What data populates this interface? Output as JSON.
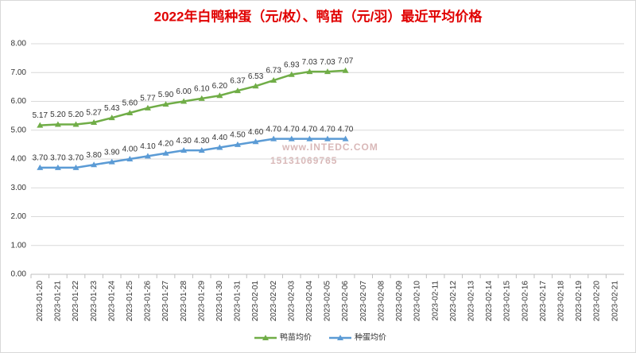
{
  "chart_data": {
    "type": "line",
    "title": "2022年白鸭种蛋（元/枚）、鸭苗（元/羽）最近平均价格",
    "categories": [
      "2023-01-20",
      "2023-01-21",
      "2023-01-22",
      "2023-01-23",
      "2023-01-24",
      "2023-01-25",
      "2023-01-26",
      "2023-01-27",
      "2023-01-28",
      "2023-01-29",
      "2023-01-30",
      "2023-01-31",
      "2023-02-01",
      "2023-02-02",
      "2023-02-03",
      "2023-02-04",
      "2023-02-05",
      "2023-02-06",
      "2023-02-07",
      "2023-02-08",
      "2023-02-09",
      "2023-02-10",
      "2023-02-11",
      "2023-02-12",
      "2023-02-13",
      "2023-02-14",
      "2023-02-15",
      "2023-02-16",
      "2023-02-17",
      "2023-02-18",
      "2023-02-19",
      "2023-02-20",
      "2023-02-21"
    ],
    "series": [
      {
        "name": "鸭苗均价",
        "color": "#70ad47",
        "values": [
          5.17,
          5.2,
          5.2,
          5.27,
          5.43,
          5.6,
          5.77,
          5.9,
          6.0,
          6.1,
          6.2,
          6.37,
          6.53,
          6.73,
          6.93,
          7.03,
          7.03,
          7.07,
          null,
          null,
          null,
          null,
          null,
          null,
          null,
          null,
          null,
          null,
          null,
          null,
          null,
          null,
          null
        ],
        "value_labels": [
          "5.17",
          "5.20",
          "5.20",
          "5.27",
          "5.43",
          "5.60",
          "5.77",
          "5.90",
          "6.00",
          "6.10",
          "6.20",
          "6.37",
          "6.53",
          "6.73",
          "6.93",
          "7.03",
          "7.03",
          "7.07",
          null,
          null,
          null,
          null,
          null,
          null,
          null,
          null,
          null,
          null,
          null,
          null,
          null,
          null,
          null
        ]
      },
      {
        "name": "种蛋均价",
        "color": "#5b9bd5",
        "values": [
          3.7,
          3.7,
          3.7,
          3.8,
          3.9,
          4.0,
          4.1,
          4.2,
          4.3,
          4.3,
          4.4,
          4.5,
          4.6,
          4.7,
          4.7,
          4.7,
          4.7,
          4.7,
          null,
          null,
          null,
          null,
          null,
          null,
          null,
          null,
          null,
          null,
          null,
          null,
          null,
          null,
          null
        ],
        "value_labels": [
          "3.70",
          "3.70",
          "3.70",
          "3.80",
          "3.90",
          "4.00",
          "4.10",
          "4.20",
          "4.30",
          "4.30",
          "4.40",
          "4.50",
          "4.60",
          "4.70",
          "4.70",
          "4.70",
          "4.70",
          "4.70",
          null,
          null,
          null,
          null,
          null,
          null,
          null,
          null,
          null,
          null,
          null,
          null,
          null,
          null,
          null
        ]
      }
    ],
    "ylim": [
      0,
      8
    ],
    "yticks": [
      {
        "value": 0,
        "label": "0.00"
      },
      {
        "value": 1,
        "label": "1.00"
      },
      {
        "value": 2,
        "label": "2.00"
      },
      {
        "value": 3,
        "label": "3.00"
      },
      {
        "value": 4,
        "label": "4.00"
      },
      {
        "value": 5,
        "label": "5.00"
      },
      {
        "value": 6,
        "label": "6.00"
      },
      {
        "value": 7,
        "label": "7.00"
      },
      {
        "value": 8,
        "label": "8.00"
      }
    ],
    "grid": true,
    "legend": "bottom",
    "watermark": [
      "www.INTEDC.COM",
      "15131069765"
    ]
  }
}
